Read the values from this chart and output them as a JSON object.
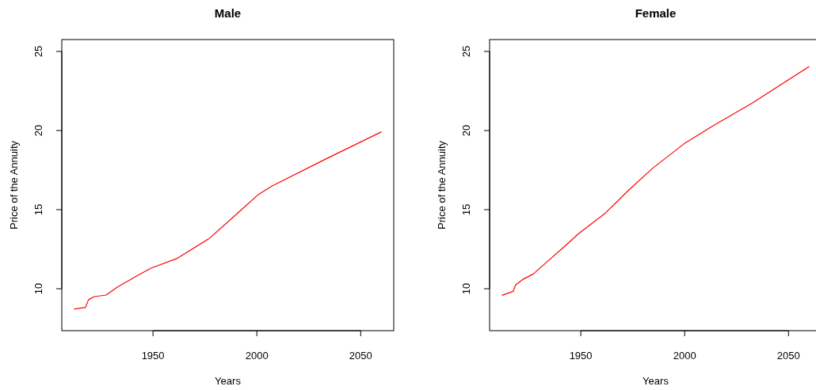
{
  "chart_data": [
    {
      "type": "line",
      "title": "Male",
      "xlabel": "Years",
      "ylabel": "Price of the Annuity",
      "xlim": [
        1906.1,
        2065.9
      ],
      "ylim": [
        7.35,
        25.75
      ],
      "xticks": [
        1950,
        2000,
        2050
      ],
      "yticks": [
        10,
        15,
        20,
        25
      ],
      "series": [
        {
          "color": "#ff0000",
          "x": [
            1912,
            1917.5,
            1919,
            1921.7,
            1927.4,
            1933.1,
            1941.4,
            1949,
            1961.7,
            1977,
            1988.4,
            2000.4,
            2007.4,
            2032.7,
            2060
          ],
          "values": [
            8.72,
            8.82,
            9.32,
            9.5,
            9.6,
            10.12,
            10.75,
            11.3,
            11.92,
            13.17,
            14.5,
            15.92,
            16.5,
            18.17,
            19.92
          ]
        }
      ]
    },
    {
      "type": "line",
      "title": "Female",
      "xlabel": "Years",
      "ylabel": "Price of the Annuity",
      "xlim": [
        1906.1,
        2065.9
      ],
      "ylim": [
        7.35,
        25.75
      ],
      "xticks": [
        1950,
        2000,
        2050
      ],
      "yticks": [
        10,
        15,
        20,
        25
      ],
      "series": [
        {
          "color": "#ff0000",
          "x": [
            1912,
            1917.4,
            1918.7,
            1922.5,
            1927,
            1933.9,
            1942.8,
            1949.1,
            1961.8,
            1973.2,
            1984.6,
            1999.8,
            2013.7,
            2032.7,
            2060
          ],
          "values": [
            9.58,
            9.83,
            10.25,
            10.62,
            10.92,
            11.72,
            12.75,
            13.5,
            14.78,
            16.25,
            17.62,
            19.17,
            20.3,
            21.75,
            24.05
          ]
        }
      ]
    }
  ]
}
